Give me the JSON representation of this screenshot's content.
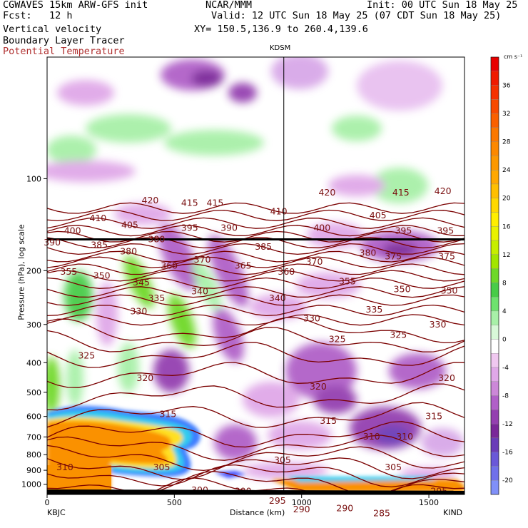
{
  "header": {
    "line1_left": "CGWAVES 15km ARW-GFS init",
    "line1_center": "NCAR/MMM",
    "line1_right": "Init: 00 UTC Sun 18 May 25",
    "line2_left": "Fcst:   12 h",
    "line2_right": "Valid: 12 UTC Sun 18 May 25 (07 CDT Sun 18 May 25)",
    "line3_left": "Vertical velocity",
    "line3_right": "XY= 150.5,136.9 to 260.4,139.6",
    "line4_left": "Boundary Layer Tracer",
    "line5_left": "Potential Temperature"
  },
  "colors": {
    "theta_contour": "#7a0000",
    "theta_label": "#7a1010",
    "ground": "#000000"
  },
  "chart_data": {
    "type": "heatmap",
    "title": "",
    "xlabel": "Distance (km)",
    "ylabel": "Pressure (hPa), log scale",
    "xlim": [
      0,
      1640
    ],
    "ylim": [
      1000,
      40
    ],
    "y_scale": "log",
    "x_ticks": [
      0,
      500,
      1000,
      1500
    ],
    "y_ticks": [
      100,
      200,
      300,
      400,
      500,
      600,
      700,
      800,
      900,
      1000
    ],
    "marker_label": "KDSM",
    "marker_x": 930,
    "left_station": "KBJC",
    "right_station": "KIND",
    "colorbar": {
      "unit": "cm s⁻¹",
      "tick_labels": [
        "36",
        "32",
        "28",
        "24",
        "20",
        "16",
        "12",
        "8",
        "4",
        "0",
        "-4",
        "-8",
        "-12",
        "-16",
        "-20"
      ],
      "levels": [
        40,
        38,
        36,
        34,
        32,
        30,
        28,
        26,
        24,
        22,
        20,
        18,
        16,
        14,
        12,
        10,
        8,
        6,
        4,
        2,
        0,
        -2,
        -4,
        -6,
        -8,
        -10,
        -12,
        -14,
        -16,
        -18,
        -20,
        -22
      ],
      "colors": [
        "#e80000",
        "#f01a00",
        "#f53000",
        "#f84a00",
        "#fa6000",
        "#fb7800",
        "#fc8800",
        "#fd9800",
        "#ffa800",
        "#ffbf00",
        "#ffd800",
        "#ffee00",
        "#e9f200",
        "#c6ee00",
        "#a2e600",
        "#6ed828",
        "#48cc48",
        "#6ee26e",
        "#a8f0a8",
        "#d8f8d8",
        "#ffffff",
        "#f0c8f0",
        "#e0a8e8",
        "#cc88d8",
        "#b060c8",
        "#9440b0",
        "#7a2899",
        "#6a3cb8",
        "#6a58d8",
        "#7070ea",
        "#8090f8"
      ]
    },
    "theta_labels": [
      {
        "x": 20,
        "p": 162,
        "v": "390"
      },
      {
        "x": 100,
        "p": 148,
        "v": "400"
      },
      {
        "x": 200,
        "p": 135,
        "v": "410"
      },
      {
        "x": 325,
        "p": 142,
        "v": "405"
      },
      {
        "x": 405,
        "p": 118,
        "v": "420"
      },
      {
        "x": 560,
        "p": 120,
        "v": "415"
      },
      {
        "x": 660,
        "p": 120,
        "v": "415"
      },
      {
        "x": 910,
        "p": 128,
        "v": "410"
      },
      {
        "x": 1100,
        "p": 111,
        "v": "420"
      },
      {
        "x": 1390,
        "p": 111,
        "v": "415"
      },
      {
        "x": 1555,
        "p": 110,
        "v": "420"
      },
      {
        "x": 560,
        "p": 145,
        "v": "395"
      },
      {
        "x": 715,
        "p": 145,
        "v": "390"
      },
      {
        "x": 1080,
        "p": 145,
        "v": "400"
      },
      {
        "x": 1300,
        "p": 132,
        "v": "405"
      },
      {
        "x": 1400,
        "p": 148,
        "v": "395"
      },
      {
        "x": 1565,
        "p": 148,
        "v": "395"
      },
      {
        "x": 205,
        "p": 165,
        "v": "385"
      },
      {
        "x": 320,
        "p": 173,
        "v": "380"
      },
      {
        "x": 430,
        "p": 158,
        "v": "380"
      },
      {
        "x": 850,
        "p": 167,
        "v": "385"
      },
      {
        "x": 1260,
        "p": 175,
        "v": "380"
      },
      {
        "x": 480,
        "p": 193,
        "v": "360"
      },
      {
        "x": 610,
        "p": 184,
        "v": "370"
      },
      {
        "x": 770,
        "p": 193,
        "v": "365"
      },
      {
        "x": 940,
        "p": 202,
        "v": "360"
      },
      {
        "x": 1050,
        "p": 187,
        "v": "370"
      },
      {
        "x": 1360,
        "p": 180,
        "v": "375"
      },
      {
        "x": 1570,
        "p": 180,
        "v": "375"
      },
      {
        "x": 85,
        "p": 202,
        "v": "355"
      },
      {
        "x": 215,
        "p": 208,
        "v": "350"
      },
      {
        "x": 370,
        "p": 219,
        "v": "345"
      },
      {
        "x": 600,
        "p": 234,
        "v": "340"
      },
      {
        "x": 905,
        "p": 246,
        "v": "340"
      },
      {
        "x": 1180,
        "p": 217,
        "v": "355"
      },
      {
        "x": 1395,
        "p": 230,
        "v": "350"
      },
      {
        "x": 1580,
        "p": 233,
        "v": "350"
      },
      {
        "x": 430,
        "p": 246,
        "v": "335"
      },
      {
        "x": 1285,
        "p": 268,
        "v": "335"
      },
      {
        "x": 360,
        "p": 272,
        "v": "330"
      },
      {
        "x": 1040,
        "p": 287,
        "v": "330"
      },
      {
        "x": 1535,
        "p": 300,
        "v": "330"
      },
      {
        "x": 155,
        "p": 380,
        "v": "325"
      },
      {
        "x": 1140,
        "p": 335,
        "v": "325"
      },
      {
        "x": 1380,
        "p": 325,
        "v": "325"
      },
      {
        "x": 385,
        "p": 450,
        "v": "320"
      },
      {
        "x": 1065,
        "p": 480,
        "v": "320"
      },
      {
        "x": 1570,
        "p": 450,
        "v": "320"
      },
      {
        "x": 475,
        "p": 590,
        "v": "315"
      },
      {
        "x": 1105,
        "p": 620,
        "v": "315"
      },
      {
        "x": 1520,
        "p": 600,
        "v": "315"
      },
      {
        "x": 1275,
        "p": 698,
        "v": "310"
      },
      {
        "x": 1405,
        "p": 698,
        "v": "310"
      },
      {
        "x": 70,
        "p": 880,
        "v": "310"
      },
      {
        "x": 450,
        "p": 880,
        "v": "305"
      },
      {
        "x": 925,
        "p": 835,
        "v": "305"
      },
      {
        "x": 1360,
        "p": 880,
        "v": "305"
      },
      {
        "x": 600,
        "p": 1045,
        "v": "300"
      },
      {
        "x": 770,
        "p": 1055,
        "v": "300"
      },
      {
        "x": 905,
        "p": 1135,
        "v": "295"
      },
      {
        "x": 1540,
        "p": 1055,
        "v": "295"
      },
      {
        "x": 1000,
        "p": 1210,
        "v": "290"
      },
      {
        "x": 1170,
        "p": 1200,
        "v": "290"
      },
      {
        "x": 1315,
        "p": 1245,
        "v": "285"
      }
    ]
  }
}
